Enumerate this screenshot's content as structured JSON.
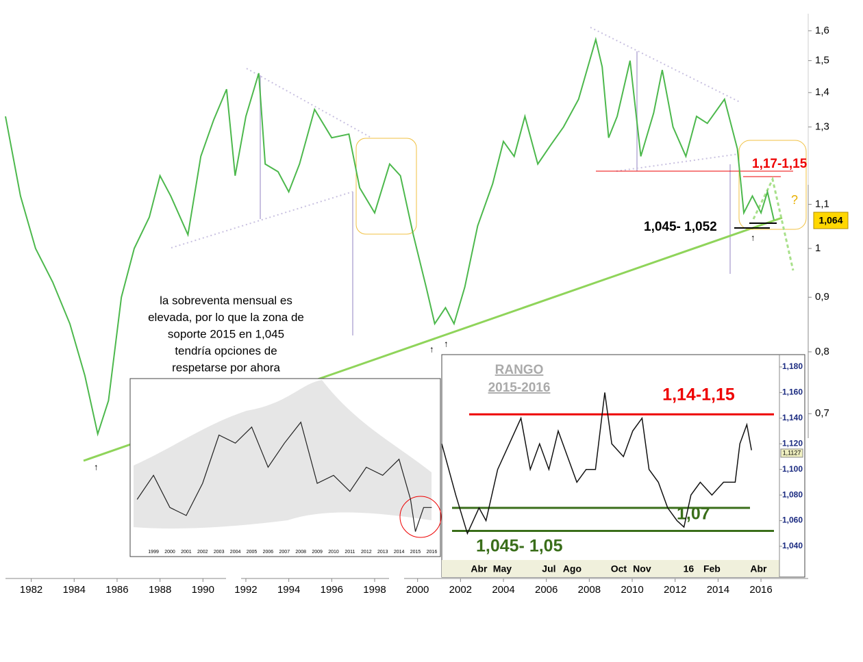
{
  "chart_data": [
    {
      "type": "line",
      "log_scale": true,
      "color": "#4cb84c",
      "x": [
        1980.8,
        1981.5,
        1982.2,
        1983,
        1983.8,
        1984.5,
        1985.1,
        1985.6,
        1986.2,
        1986.8,
        1987.5,
        1988,
        1988.5,
        1989.3,
        1989.9,
        1990.5,
        1991.1,
        1991.5,
        1992,
        1992.6,
        1992.9,
        1993.5,
        1994,
        1994.5,
        1995.2,
        1996,
        1996.8,
        1997.3,
        1998,
        1998.7,
        1999.2,
        1999.8,
        2000.4,
        2000.8,
        2001.3,
        2001.7,
        2002.2,
        2002.8,
        2003.5,
        2004,
        2004.5,
        2005,
        2005.6,
        2006.2,
        2006.8,
        2007.5,
        2008.3,
        2008.6,
        2008.9,
        2009.3,
        2009.9,
        2010.4,
        2011,
        2011.4,
        2011.9,
        2012.5,
        2013,
        2013.5,
        2014.3,
        2014.9,
        2015.2,
        2015.6,
        2016,
        2016.3,
        2016.6
      ],
      "values": [
        1.33,
        1.12,
        1.0,
        0.93,
        0.85,
        0.76,
        0.67,
        0.72,
        0.9,
        1.0,
        1.07,
        1.17,
        1.12,
        1.03,
        1.22,
        1.32,
        1.41,
        1.17,
        1.33,
        1.46,
        1.2,
        1.18,
        1.13,
        1.2,
        1.35,
        1.27,
        1.28,
        1.14,
        1.08,
        1.2,
        1.17,
        1.03,
        0.92,
        0.85,
        0.88,
        0.85,
        0.92,
        1.05,
        1.15,
        1.26,
        1.22,
        1.33,
        1.2,
        1.25,
        1.3,
        1.38,
        1.57,
        1.48,
        1.27,
        1.33,
        1.5,
        1.22,
        1.34,
        1.47,
        1.3,
        1.22,
        1.33,
        1.31,
        1.38,
        1.24,
        1.08,
        1.12,
        1.08,
        1.13,
        1.064
      ],
      "xlim": [
        1980.8,
        2018.2
      ],
      "xticks": [
        1982,
        1984,
        1986,
        1988,
        1990,
        1992,
        1994,
        1996,
        1998,
        2000,
        2002,
        2004,
        2006,
        2008,
        2010,
        2012,
        2014,
        2016
      ],
      "ylim": [
        0.664,
        1.66
      ],
      "yticks": [
        {
          "value": 0.7,
          "label": "0,7"
        },
        {
          "value": 0.8,
          "label": "0,8"
        },
        {
          "value": 0.9,
          "label": "0,9"
        },
        {
          "value": 1,
          "label": "1"
        },
        {
          "value": 1.1,
          "label": "1,1"
        },
        {
          "value": 1.3,
          "label": "1,3"
        },
        {
          "value": 1.4,
          "label": "1,4"
        },
        {
          "value": 1.5,
          "label": "1,5"
        },
        {
          "value": 1.6,
          "label": "1,6"
        }
      ],
      "last_price": {
        "value": 1.064,
        "label": "1,064"
      },
      "resistance_label": "1,17-1,15",
      "support_label": "1,045- 1,052",
      "question": "?",
      "note": [
        "la sobreventa mensual es",
        "elevada, por lo que la zona de",
        "soporte 2015 en 1,045",
        "tendría opciones de",
        "respetarse por ahora"
      ]
    },
    {
      "type": "line",
      "color": "#222222",
      "x": [
        1998,
        1999,
        2000,
        2001,
        2002,
        2003,
        2004,
        2005,
        2006,
        2007,
        2008,
        2009,
        2010,
        2011,
        2012,
        2013,
        2014,
        2014.7,
        2015,
        2015.5,
        2016
      ],
      "values": [
        30,
        45,
        25,
        20,
        40,
        70,
        65,
        75,
        50,
        65,
        78,
        40,
        45,
        35,
        50,
        45,
        55,
        30,
        10,
        25,
        25
      ],
      "xlim": [
        1997.7,
        2016.4
      ],
      "ylim": [
        0,
        100
      ],
      "xticks": [
        1999,
        2000,
        2001,
        2002,
        2003,
        2004,
        2005,
        2006,
        2007,
        2008,
        2009,
        2010,
        2011,
        2012,
        2013,
        2014,
        2015,
        2016
      ]
    },
    {
      "type": "line",
      "color": "#111111",
      "title": [
        "RANGO",
        "2015-2016"
      ],
      "x": [
        1.4,
        2,
        2.5,
        3,
        3.3,
        3.8,
        4.3,
        4.8,
        5.2,
        5.6,
        6,
        6.4,
        6.8,
        7.2,
        7.6,
        8,
        8.4,
        8.7,
        9.2,
        9.6,
        10,
        10.3,
        10.7,
        11.1,
        11.5,
        11.8,
        12.1,
        12.5,
        13,
        13.5,
        14,
        14.2,
        14.5,
        14.7
      ],
      "values": [
        1.12,
        1.08,
        1.05,
        1.07,
        1.06,
        1.1,
        1.12,
        1.14,
        1.1,
        1.12,
        1.1,
        1.13,
        1.11,
        1.09,
        1.1,
        1.1,
        1.16,
        1.12,
        1.11,
        1.13,
        1.14,
        1.1,
        1.09,
        1.07,
        1.06,
        1.055,
        1.08,
        1.09,
        1.08,
        1.09,
        1.09,
        1.12,
        1.135,
        1.115
      ],
      "xlim": [
        1.4,
        15.9
      ],
      "ylim": [
        1.0293,
        1.1896
      ],
      "xticks": [
        {
          "value": 3,
          "label": "Abr"
        },
        {
          "value": 4,
          "label": "May"
        },
        {
          "value": 6,
          "label": "Jul"
        },
        {
          "value": 7,
          "label": "Ago"
        },
        {
          "value": 9,
          "label": "Oct"
        },
        {
          "value": 10,
          "label": "Nov"
        },
        {
          "value": 12,
          "label": "16"
        },
        {
          "value": 13,
          "label": "Feb"
        },
        {
          "value": 15,
          "label": "Abr"
        }
      ],
      "yticks": [
        {
          "value": 1.04,
          "label": "1,040"
        },
        {
          "value": 1.06,
          "label": "1,060"
        },
        {
          "value": 1.08,
          "label": "1,080"
        },
        {
          "value": 1.1,
          "label": "1,100"
        },
        {
          "value": 1.12,
          "label": "1,120"
        },
        {
          "value": 1.14,
          "label": "1,140"
        },
        {
          "value": 1.16,
          "label": "1,160"
        },
        {
          "value": 1.18,
          "label": "1,180"
        }
      ],
      "last_price": {
        "value": 1.1127,
        "label": "1,1127"
      },
      "levels": [
        1.143,
        1.07,
        1.052
      ],
      "resistance_label": "1,14-1,15",
      "mid_label": "1,07",
      "support_label": "1,045- 1,05"
    }
  ]
}
